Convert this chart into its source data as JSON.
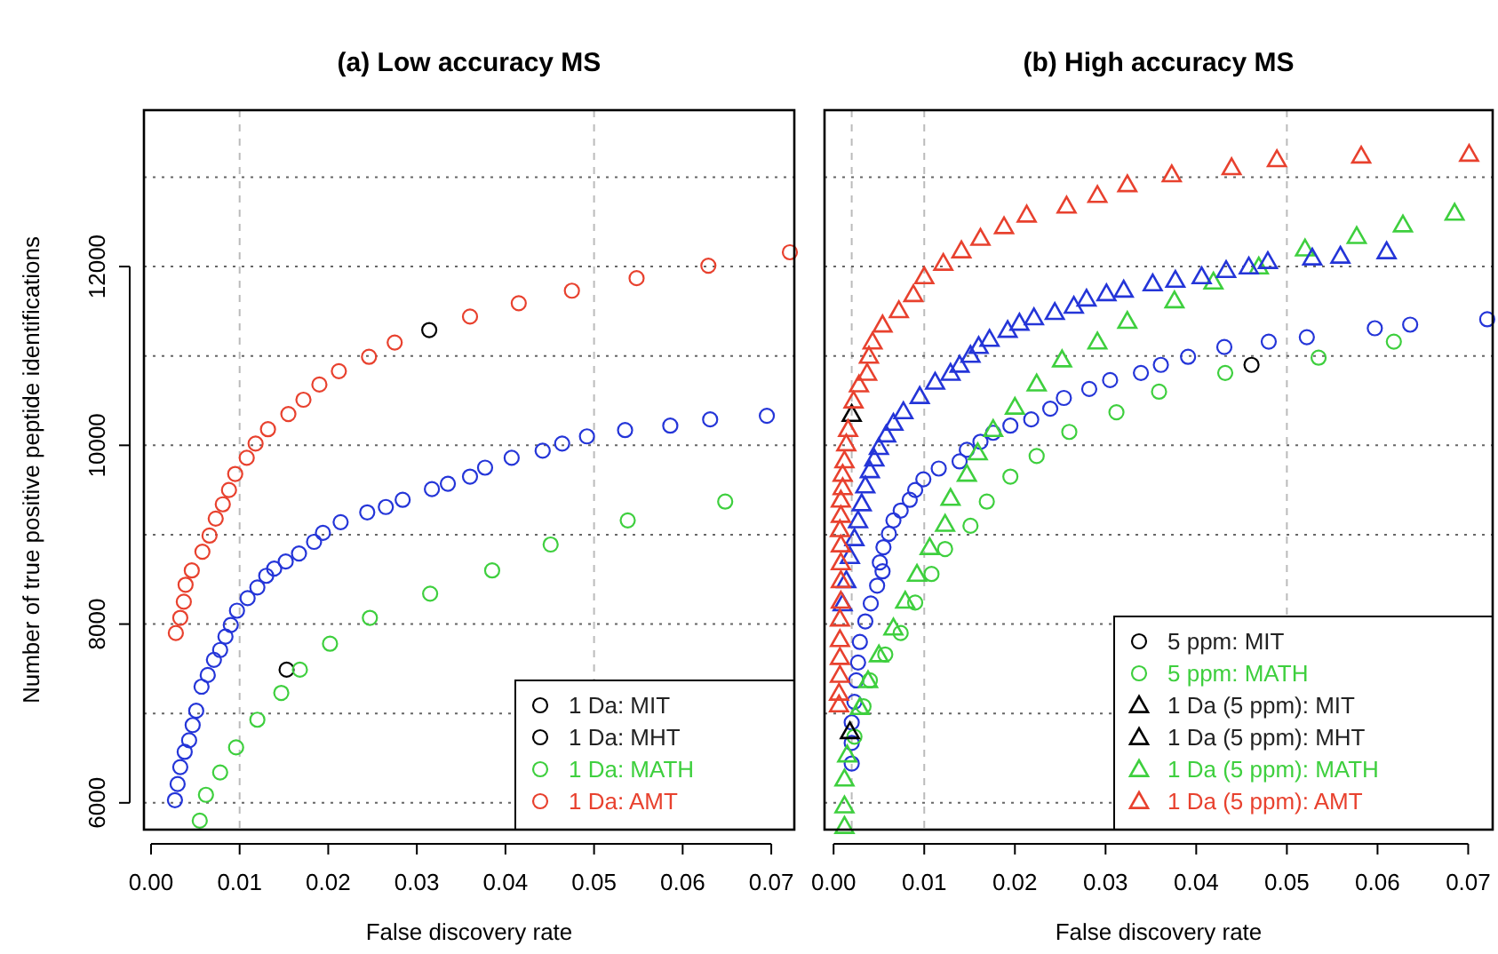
{
  "chart_data": [
    {
      "type": "scatter",
      "title": "(a) Low accuracy MS",
      "xlabel": "False discovery rate",
      "ylabel": "Number of true positive peptide identifications",
      "xlim": [
        -0.0008,
        0.0726
      ],
      "ylim": [
        5700,
        13750
      ],
      "xticks": [
        {
          "value": 0,
          "label": "0.00"
        },
        {
          "value": 0.01,
          "label": "0.01"
        },
        {
          "value": 0.02,
          "label": "0.02"
        },
        {
          "value": 0.03,
          "label": "0.03"
        },
        {
          "value": 0.04,
          "label": "0.04"
        },
        {
          "value": 0.05,
          "label": "0.05"
        },
        {
          "value": 0.06,
          "label": "0.06"
        },
        {
          "value": 0.07,
          "label": "0.07"
        }
      ],
      "yticks": [
        6000,
        8000,
        10000,
        12000
      ],
      "legend": "bottom right",
      "ref_lines": [
        {
          "axis": "x",
          "value": 0.01,
          "line_style": "dashed",
          "color": "#bbbbbb"
        },
        {
          "axis": "x",
          "value": 0.05,
          "line_style": "dashed",
          "color": "#bbbbbb"
        },
        {
          "axis": "y",
          "value": 6000,
          "line_style": "dotted",
          "color": "#666666"
        },
        {
          "axis": "y",
          "value": 7000,
          "line_style": "dotted",
          "color": "#666666"
        },
        {
          "axis": "y",
          "value": 8000,
          "line_style": "dotted",
          "color": "#666666"
        },
        {
          "axis": "y",
          "value": 9000,
          "line_style": "dotted",
          "color": "#666666"
        },
        {
          "axis": "y",
          "value": 10000,
          "line_style": "dotted",
          "color": "#666666"
        },
        {
          "axis": "y",
          "value": 11000,
          "line_style": "dotted",
          "color": "#666666"
        },
        {
          "axis": "y",
          "value": 12000,
          "line_style": "dotted",
          "color": "#666666"
        },
        {
          "axis": "y",
          "value": 13000,
          "line_style": "dotted",
          "color": "#666666"
        }
      ],
      "series": [
        {
          "name": "1 Da: MIT",
          "color": "#000000",
          "marker": "circle",
          "x": [
            0.0153
          ],
          "values": [
            7490
          ]
        },
        {
          "name": "1 Da: MHT",
          "color": "#000000",
          "marker": "circle",
          "x": [
            0.0314
          ],
          "values": [
            11290
          ]
        },
        {
          "name": "1 Da: MATH",
          "color": "#3ecf3e",
          "marker": "circle",
          "x": [
            0.0055,
            0.0062,
            0.0078,
            0.0096,
            0.012,
            0.0147,
            0.0168,
            0.0202,
            0.0247,
            0.0315,
            0.0385,
            0.0451,
            0.0538,
            0.0648
          ],
          "values": [
            5800,
            6090,
            6340,
            6620,
            6930,
            7230,
            7490,
            7780,
            8070,
            8340,
            8600,
            8890,
            9160,
            9370
          ]
        },
        {
          "color": "#2435d8",
          "marker": "circle",
          "x": [
            0.0027,
            0.003,
            0.0033,
            0.0038,
            0.0043,
            0.0047,
            0.0051,
            0.0057,
            0.0064,
            0.0071,
            0.0078,
            0.0084,
            0.009,
            0.0097,
            0.0109,
            0.012,
            0.013,
            0.0139,
            0.0152,
            0.0167,
            0.0184,
            0.0194,
            0.0214,
            0.0244,
            0.0265,
            0.0284,
            0.0317,
            0.0335,
            0.036,
            0.0377,
            0.0407,
            0.0442,
            0.0464,
            0.0492,
            0.0535,
            0.0586,
            0.0631,
            0.0695
          ],
          "values": [
            6030,
            6210,
            6400,
            6570,
            6700,
            6870,
            7030,
            7300,
            7430,
            7600,
            7710,
            7860,
            7990,
            8150,
            8290,
            8410,
            8540,
            8620,
            8700,
            8790,
            8920,
            9020,
            9140,
            9250,
            9310,
            9390,
            9510,
            9570,
            9650,
            9750,
            9860,
            9940,
            10020,
            10100,
            10170,
            10220,
            10290,
            10330
          ]
        },
        {
          "name": "1 Da: AMT",
          "color": "#e8412e",
          "marker": "circle",
          "x": [
            0.0028,
            0.0033,
            0.0037,
            0.0039,
            0.0046,
            0.0058,
            0.0066,
            0.0073,
            0.0081,
            0.0088,
            0.0095,
            0.0108,
            0.0118,
            0.0132,
            0.0155,
            0.0172,
            0.019,
            0.0212,
            0.0246,
            0.0275,
            0.036,
            0.0415,
            0.0475,
            0.0548,
            0.0629,
            0.0721
          ],
          "values": [
            7900,
            8070,
            8250,
            8440,
            8600,
            8810,
            8990,
            9180,
            9340,
            9500,
            9680,
            9860,
            10020,
            10180,
            10350,
            10510,
            10680,
            10830,
            10990,
            11150,
            11440,
            11590,
            11730,
            11870,
            12010,
            12160
          ]
        }
      ]
    },
    {
      "type": "scatter",
      "title": "(b) High accuracy MS",
      "xlabel": "False discovery rate",
      "xlim": [
        -0.001,
        0.0727
      ],
      "ylim": [
        5700,
        13750
      ],
      "tick_labels": "x",
      "xticks": [
        {
          "value": 0,
          "label": "0.00"
        },
        {
          "value": 0.01,
          "label": "0.01"
        },
        {
          "value": 0.02,
          "label": "0.02"
        },
        {
          "value": 0.03,
          "label": "0.03"
        },
        {
          "value": 0.04,
          "label": "0.04"
        },
        {
          "value": 0.05,
          "label": "0.05"
        },
        {
          "value": 0.06,
          "label": "0.06"
        },
        {
          "value": 0.07,
          "label": "0.07"
        }
      ],
      "legend": "bottom right",
      "ref_lines": [
        {
          "axis": "x",
          "value": 0.002,
          "line_style": "dashed",
          "color": "#bbbbbb"
        },
        {
          "axis": "x",
          "value": 0.01,
          "line_style": "dashed",
          "color": "#bbbbbb"
        },
        {
          "axis": "x",
          "value": 0.05,
          "line_style": "dashed",
          "color": "#bbbbbb"
        },
        {
          "axis": "y",
          "value": 6000,
          "line_style": "dotted",
          "color": "#666666"
        },
        {
          "axis": "y",
          "value": 7000,
          "line_style": "dotted",
          "color": "#666666"
        },
        {
          "axis": "y",
          "value": 8000,
          "line_style": "dotted",
          "color": "#666666"
        },
        {
          "axis": "y",
          "value": 9000,
          "line_style": "dotted",
          "color": "#666666"
        },
        {
          "axis": "y",
          "value": 10000,
          "line_style": "dotted",
          "color": "#666666"
        },
        {
          "axis": "y",
          "value": 11000,
          "line_style": "dotted",
          "color": "#666666"
        },
        {
          "axis": "y",
          "value": 12000,
          "line_style": "dotted",
          "color": "#666666"
        },
        {
          "axis": "y",
          "value": 13000,
          "line_style": "dotted",
          "color": "#666666"
        }
      ],
      "series": [
        {
          "name": "5 ppm: MIT",
          "color": "#000000",
          "marker": "circle",
          "x": [
            0.0461
          ],
          "values": [
            10900
          ]
        },
        {
          "color": "#2435d8",
          "marker": "circle",
          "x": [
            0.002,
            0.002,
            0.002,
            0.0023,
            0.0025,
            0.0027,
            0.0029,
            0.0035,
            0.0041,
            0.0048,
            0.0054,
            0.0051,
            0.0055,
            0.0061,
            0.0066,
            0.0074,
            0.0084,
            0.009,
            0.0099,
            0.0116,
            0.0139,
            0.0147,
            0.0162,
            0.0176,
            0.0195,
            0.0218,
            0.0239,
            0.0254,
            0.0282,
            0.0305,
            0.0339,
            0.0361,
            0.0391,
            0.0431,
            0.048,
            0.0522,
            0.0597,
            0.0636,
            0.0721
          ],
          "values": [
            6440,
            6670,
            6900,
            7130,
            7370,
            7570,
            7800,
            8030,
            8230,
            8430,
            8590,
            8690,
            8860,
            9010,
            9160,
            9270,
            9390,
            9500,
            9620,
            9740,
            9820,
            9950,
            10040,
            10140,
            10220,
            10290,
            10410,
            10530,
            10630,
            10730,
            10810,
            10900,
            10990,
            11100,
            11160,
            11210,
            11310,
            11350,
            11410
          ]
        },
        {
          "name": "5 ppm: MATH",
          "color": "#3ecf3e",
          "marker": "circle",
          "x": [
            0.0023,
            0.0033,
            0.004,
            0.0057,
            0.0074,
            0.009,
            0.0108,
            0.0123,
            0.0151,
            0.0169,
            0.0195,
            0.0224,
            0.026,
            0.0312,
            0.0359,
            0.0432,
            0.0535,
            0.0618
          ],
          "values": [
            6740,
            7080,
            7370,
            7660,
            7900,
            8240,
            8560,
            8840,
            9100,
            9370,
            9650,
            9880,
            10150,
            10370,
            10600,
            10810,
            10980,
            11160
          ]
        },
        {
          "name": "1 Da (5 ppm): MIT",
          "color": "#000000",
          "marker": "triangle",
          "x": [
            0.0018
          ],
          "values": [
            6800
          ]
        },
        {
          "name": "1 Da (5 ppm): MHT",
          "color": "#000000",
          "marker": "triangle",
          "x": [
            0.002
          ],
          "values": [
            10350
          ]
        },
        {
          "name": "1 Da (5 ppm): MATH",
          "color": "#3ecf3e",
          "marker": "triangle",
          "x": [
            0.0012,
            0.0012,
            0.0012,
            0.0015,
            0.0029,
            0.0038,
            0.005,
            0.0066,
            0.0079,
            0.0092,
            0.0106,
            0.0123,
            0.0129,
            0.0147,
            0.0159,
            0.0176,
            0.02,
            0.0224,
            0.0252,
            0.0291,
            0.0324,
            0.0376,
            0.0419,
            0.0469,
            0.052,
            0.0577,
            0.0628,
            0.0685
          ],
          "values": [
            5740,
            5970,
            6270,
            6540,
            7070,
            7370,
            7660,
            7960,
            8260,
            8560,
            8860,
            9120,
            9410,
            9680,
            9920,
            10180,
            10430,
            10690,
            10960,
            11160,
            11390,
            11620,
            11830,
            12000,
            12200,
            12340,
            12470,
            12600
          ]
        },
        {
          "color": "#2435d8",
          "marker": "triangle",
          "x": [
            0.001,
            0.0014,
            0.0018,
            0.0023,
            0.0027,
            0.0031,
            0.0035,
            0.004,
            0.0045,
            0.005,
            0.0058,
            0.0066,
            0.0077,
            0.0095,
            0.0112,
            0.0129,
            0.0139,
            0.0151,
            0.016,
            0.0172,
            0.0192,
            0.0205,
            0.0221,
            0.0244,
            0.0265,
            0.0279,
            0.0301,
            0.032,
            0.0352,
            0.0377,
            0.0406,
            0.0433,
            0.0458,
            0.0479,
            0.0528,
            0.0559,
            0.061
          ],
          "values": [
            8230,
            8490,
            8760,
            8960,
            9160,
            9350,
            9550,
            9720,
            9850,
            9980,
            10120,
            10250,
            10380,
            10550,
            10710,
            10810,
            10900,
            11010,
            11110,
            11190,
            11290,
            11370,
            11430,
            11490,
            11560,
            11640,
            11700,
            11740,
            11810,
            11850,
            11890,
            11960,
            12000,
            12060,
            12100,
            12120,
            12170
          ]
        },
        {
          "name": "1 Da (5 ppm): AMT",
          "color": "#e8412e",
          "marker": "triangle",
          "x": [
            0.0006,
            0.0006,
            0.0007,
            0.0007,
            0.0007,
            0.0007,
            0.0008,
            0.0008,
            0.0008,
            0.0008,
            0.0007,
            0.0008,
            0.0008,
            0.001,
            0.001,
            0.0012,
            0.0014,
            0.0016,
            0.0022,
            0.0028,
            0.0037,
            0.0039,
            0.0043,
            0.0054,
            0.0072,
            0.0088,
            0.01,
            0.0121,
            0.0141,
            0.0162,
            0.0188,
            0.0213,
            0.0257,
            0.0291,
            0.0324,
            0.0373,
            0.0439,
            0.0489,
            0.0582,
            0.0701
          ],
          "values": [
            7100,
            7230,
            7430,
            7630,
            7830,
            8060,
            8260,
            8490,
            8690,
            8890,
            9060,
            9220,
            9390,
            9530,
            9680,
            9830,
            10020,
            10180,
            10500,
            10680,
            10810,
            11000,
            11160,
            11350,
            11510,
            11690,
            11890,
            12040,
            12180,
            12320,
            12450,
            12580,
            12680,
            12800,
            12920,
            13030,
            13110,
            13200,
            13240,
            13260
          ]
        }
      ]
    }
  ]
}
